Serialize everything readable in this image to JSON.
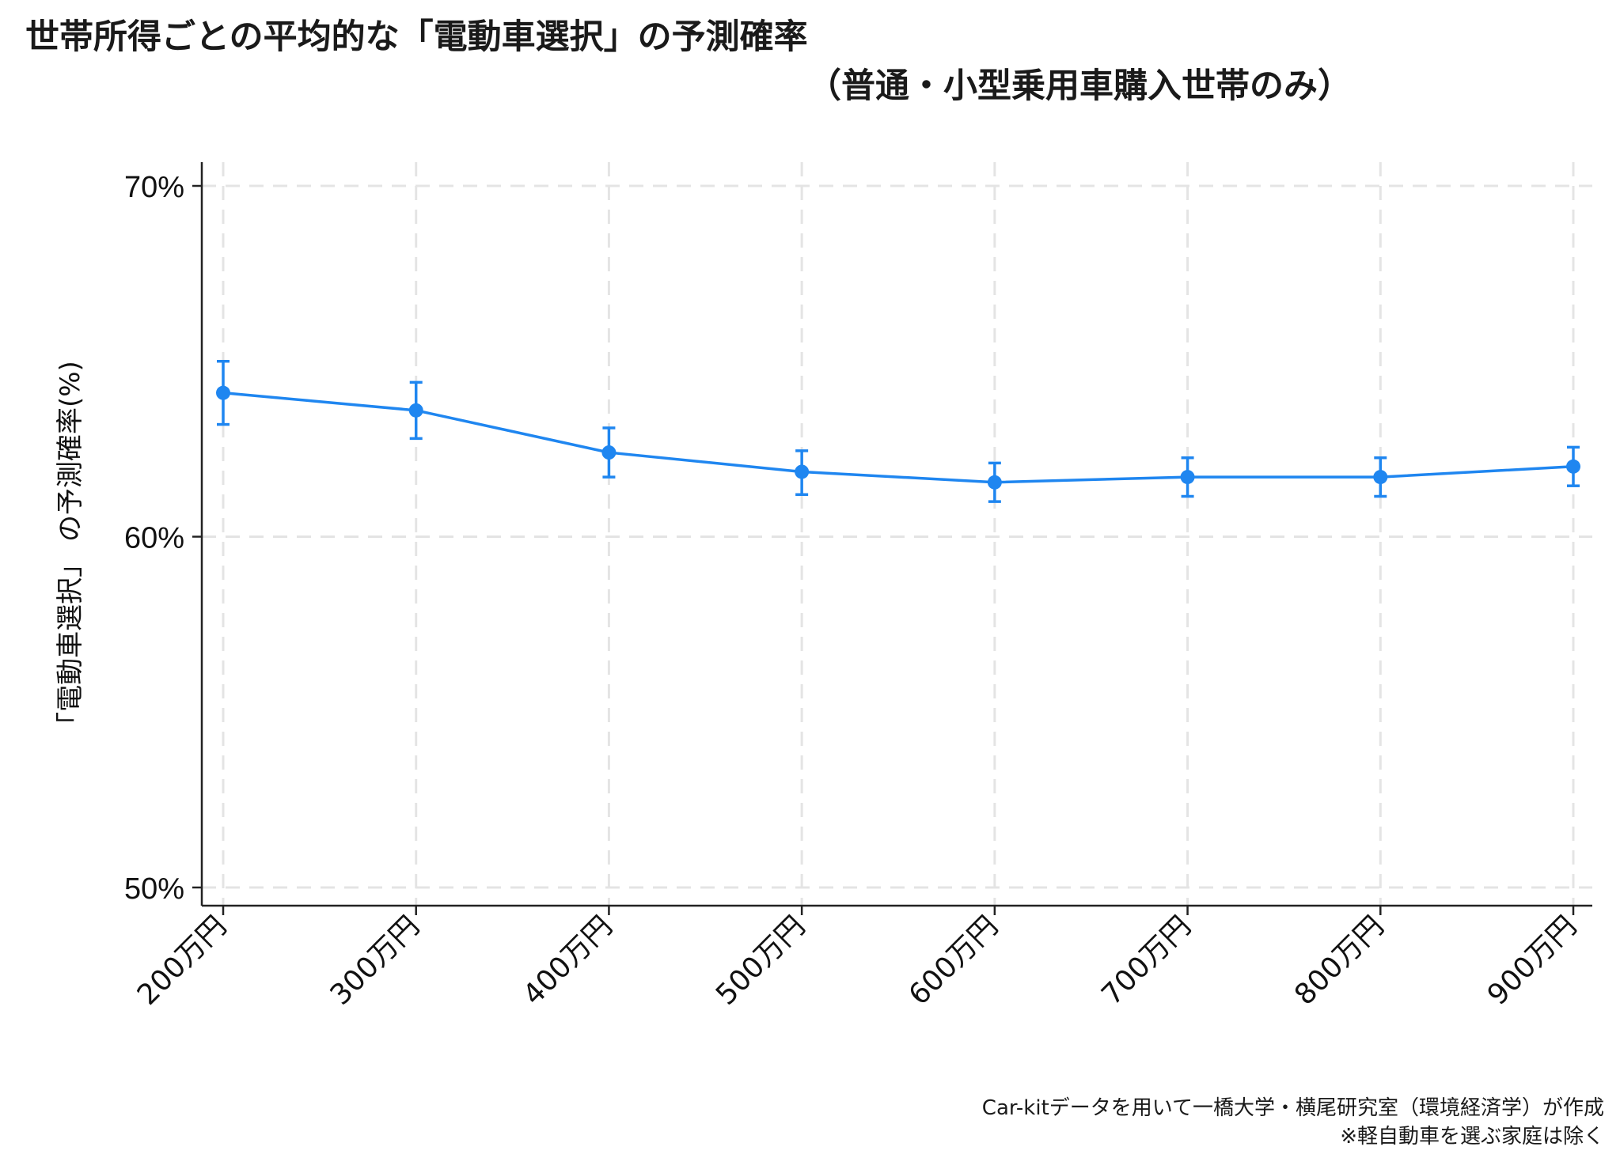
{
  "title": {
    "line1": "世帯所得ごとの平均的な「電動車選択」の予測確率",
    "line2": "（普通・小型乗用車購入世帯のみ）"
  },
  "source": {
    "line1": "Car-kitデータを用いて一橋大学・横尾研究室（環境経済学）が作成",
    "line2": "※軽自動車を選ぶ家庭は除く"
  },
  "colors": {
    "series": "#1f86f0",
    "axis": "#222222",
    "grid": "#e4e4e4"
  },
  "chart_data": {
    "type": "line",
    "title": "世帯所得ごとの平均的な「電動車選択」の予測確率（普通・小型乗用車購入世帯のみ）",
    "ylabel": "「電動車選択」 の予測確率(%)",
    "xlabel": "",
    "categories": [
      "200万円",
      "300万円",
      "400万円",
      "500万円",
      "600万円",
      "700万円",
      "800万円",
      "900万円"
    ],
    "values": [
      64.1,
      63.6,
      62.4,
      61.85,
      61.55,
      61.7,
      61.7,
      62.0
    ],
    "ci_low": [
      63.2,
      62.8,
      61.7,
      61.2,
      61.0,
      61.15,
      61.15,
      61.45
    ],
    "ci_high": [
      65.0,
      64.4,
      63.1,
      62.45,
      62.1,
      62.25,
      62.25,
      62.55
    ],
    "ylim": [
      49.5,
      70.5
    ],
    "yticks": [
      50,
      60,
      70
    ],
    "ytick_labels": [
      "50%",
      "60%",
      "70%"
    ],
    "grid": true,
    "error_bars": true
  }
}
